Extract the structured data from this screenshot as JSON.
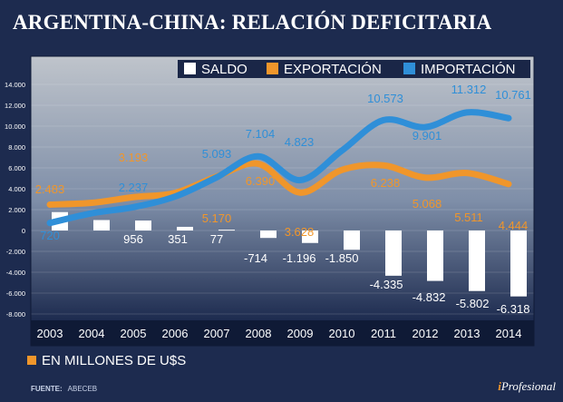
{
  "title": "ARGENTINA-CHINA: RELACIÓN DEFICITARIA",
  "unit_note": "EN MILLONES DE U$S",
  "source_label": "FUENTE:",
  "source_value": "ABECEB",
  "brand": {
    "prefix": "i",
    "name": "Profesional"
  },
  "colors": {
    "background": "#1d2b4f",
    "plot_top": "#bfc4cb",
    "plot_bottom": "#1d2b4f",
    "saldo": "#ffffff",
    "exportacion": "#f0962b",
    "importacion": "#2f8fd8",
    "legend_bar": "#1a2647"
  },
  "chart_data": {
    "type": "bar",
    "title": "ARGENTINA-CHINA: RELACIÓN DEFICITARIA",
    "categories": [
      "2003",
      "2004",
      "2005",
      "2006",
      "2007",
      "2008",
      "2009",
      "2010",
      "2011",
      "2012",
      "2013",
      "2014"
    ],
    "ylim": [
      -8000,
      14000
    ],
    "yticks": [
      "14.000",
      "12.000",
      "10.000",
      "8.000",
      "6.000",
      "4.000",
      "2.000",
      "0",
      "-2.000",
      "-4.000",
      "-6.000",
      "-8.000"
    ],
    "legend": [
      "SALDO",
      "EXPORTACIÓN",
      "IMPORTACIÓN"
    ],
    "legend_position": "top-right",
    "series": [
      {
        "name": "SALDO",
        "type": "bar",
        "values": [
          1763,
          1000,
          956,
          351,
          77,
          -714,
          -1196,
          -1850,
          -4335,
          -4832,
          -5802,
          -6318
        ],
        "labels": [
          "",
          "",
          "956",
          "351",
          "77",
          "-714",
          "-1.196",
          "-1.850",
          "-4.335",
          "-4.832",
          "-5.802",
          "-6.318"
        ]
      },
      {
        "name": "EXPORTACIÓN",
        "type": "line",
        "values": [
          2483,
          2650,
          3193,
          3600,
          5170,
          6390,
          3628,
          5800,
          6238,
          5068,
          5511,
          4444
        ],
        "labels": [
          "2.483",
          "",
          "3.193",
          "",
          "5.170",
          "6.390",
          "3.628",
          "",
          "6.238",
          "5.068",
          "5.511",
          "4.444"
        ]
      },
      {
        "name": "IMPORTACIÓN",
        "type": "line",
        "values": [
          720,
          1650,
          2237,
          3250,
          5093,
          7104,
          4823,
          7650,
          10573,
          9901,
          11312,
          10761
        ],
        "labels": [
          "720",
          "",
          "2.237",
          "",
          "5.093",
          "7.104",
          "4.823",
          "",
          "10.573",
          "9.901",
          "11.312",
          "10.761"
        ]
      }
    ]
  }
}
